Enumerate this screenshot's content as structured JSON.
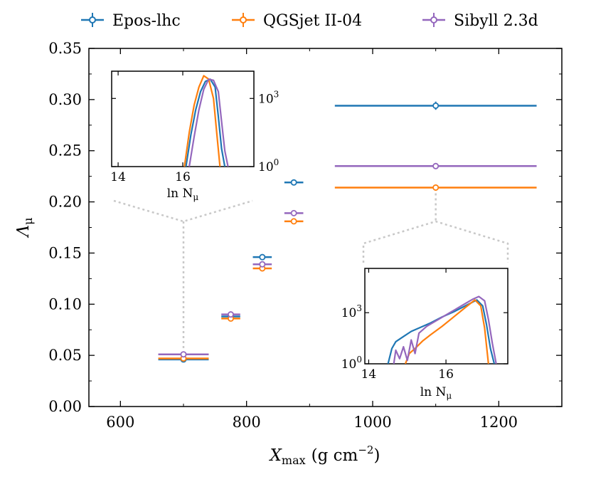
{
  "chart_data": {
    "type": "errorbar",
    "xlabel": "X_max (g cm^-2)",
    "xlabel_main": "X",
    "xlabel_sub": "max",
    "xlabel_units": "(g cm",
    "xlabel_units_exp": "−2",
    "xlabel_units_close": ")",
    "ylabel": "Λ_μ",
    "ylabel_main": "Λ",
    "ylabel_sub": "μ",
    "xlim": [
      550,
      1300
    ],
    "ylim": [
      0,
      0.35
    ],
    "xticks": [
      600,
      800,
      1000,
      1200
    ],
    "xtick_labels": [
      "600",
      "800",
      "1000",
      "1200"
    ],
    "yticks": [
      0,
      0.05,
      0.1,
      0.15,
      0.2,
      0.25,
      0.3,
      0.35
    ],
    "ytick_labels": [
      "0.00",
      "0.05",
      "0.10",
      "0.15",
      "0.20",
      "0.25",
      "0.30",
      "0.35"
    ],
    "series": [
      {
        "name": "Epos-lhc",
        "color": "#1f77b4",
        "points": [
          {
            "x": 700,
            "xlo": 660,
            "xhi": 740,
            "y": 0.046,
            "yerr": 0.002
          },
          {
            "x": 775,
            "xlo": 760,
            "xhi": 790,
            "y": 0.088,
            "yerr": 0.002
          },
          {
            "x": 825,
            "xlo": 810,
            "xhi": 840,
            "y": 0.146,
            "yerr": 0.002
          },
          {
            "x": 875,
            "xlo": 860,
            "xhi": 890,
            "y": 0.219,
            "yerr": 0.002
          },
          {
            "x": 1100,
            "xlo": 940,
            "xhi": 1260,
            "y": 0.294,
            "yerr": 0.004
          }
        ]
      },
      {
        "name": "QGSjet II-04",
        "color": "#ff7f0e",
        "points": [
          {
            "x": 700,
            "xlo": 660,
            "xhi": 740,
            "y": 0.047,
            "yerr": 0.002
          },
          {
            "x": 775,
            "xlo": 760,
            "xhi": 790,
            "y": 0.086,
            "yerr": 0.002
          },
          {
            "x": 825,
            "xlo": 810,
            "xhi": 840,
            "y": 0.135,
            "yerr": 0.002
          },
          {
            "x": 875,
            "xlo": 860,
            "xhi": 890,
            "y": 0.181,
            "yerr": 0.002
          },
          {
            "x": 1100,
            "xlo": 940,
            "xhi": 1260,
            "y": 0.214,
            "yerr": 0.003
          }
        ]
      },
      {
        "name": "Sibyll 2.3d",
        "color": "#9467bd",
        "points": [
          {
            "x": 700,
            "xlo": 660,
            "xhi": 740,
            "y": 0.051,
            "yerr": 0.002
          },
          {
            "x": 775,
            "xlo": 760,
            "xhi": 790,
            "y": 0.09,
            "yerr": 0.002
          },
          {
            "x": 825,
            "xlo": 810,
            "xhi": 840,
            "y": 0.139,
            "yerr": 0.002
          },
          {
            "x": 875,
            "xlo": 860,
            "xhi": 890,
            "y": 0.189,
            "yerr": 0.002
          },
          {
            "x": 1100,
            "xlo": 940,
            "xhi": 1260,
            "y": 0.235,
            "yerr": 0.003
          }
        ]
      }
    ],
    "legend": {
      "location": "top-center",
      "entries": [
        {
          "label": "Epos-lhc",
          "color": "#1f77b4"
        },
        {
          "label": "QGSjet II-04",
          "color": "#ff7f0e"
        },
        {
          "label": "Sibyll 2.3d",
          "color": "#9467bd"
        }
      ]
    },
    "insets": [
      {
        "name": "left",
        "description_bin_x": 700,
        "xlabel": "ln N_μ",
        "xlabel_main": "ln N",
        "xlabel_sub": "μ",
        "xlim": [
          13.8,
          18.2
        ],
        "xticks": [
          14,
          16
        ],
        "xtick_labels": [
          "14",
          "16"
        ],
        "yscale": "log",
        "ylim_log10": [
          0,
          4.2
        ],
        "yticks_log10": [
          0,
          3
        ],
        "ytick_labels": [
          {
            "base": "10",
            "exp": "0"
          },
          {
            "base": "10",
            "exp": "3"
          }
        ],
        "ytick_side": "right",
        "curves": [
          {
            "series": "Epos-lhc",
            "color": "#1f77b4",
            "x": [
              16.1,
              16.25,
              16.4,
              16.55,
              16.7,
              16.85,
              17.0,
              17.1,
              17.2,
              17.3
            ],
            "log10_y": [
              0.0,
              1.4,
              2.5,
              3.3,
              3.75,
              3.85,
              3.5,
              2.2,
              0.8,
              0.0
            ]
          },
          {
            "series": "QGSjet II-04",
            "color": "#ff7f0e",
            "x": [
              16.05,
              16.2,
              16.35,
              16.5,
              16.65,
              16.8,
              16.95,
              17.05,
              17.15
            ],
            "log10_y": [
              0.0,
              1.5,
              2.7,
              3.5,
              4.0,
              3.85,
              3.0,
              1.5,
              0.0
            ]
          },
          {
            "series": "Sibyll 2.3d",
            "color": "#9467bd",
            "x": [
              16.2,
              16.35,
              16.5,
              16.65,
              16.8,
              16.95,
              17.1,
              17.2,
              17.3,
              17.4
            ],
            "log10_y": [
              0.0,
              1.3,
              2.5,
              3.4,
              3.85,
              3.8,
              3.3,
              2.0,
              0.7,
              0.0
            ]
          }
        ]
      },
      {
        "name": "right",
        "description_bin_x": 1100,
        "xlabel": "ln N_μ",
        "xlabel_main": "ln N",
        "xlabel_sub": "μ",
        "xlim": [
          13.9,
          17.6
        ],
        "xticks": [
          14,
          16
        ],
        "xtick_labels": [
          "14",
          "16"
        ],
        "yscale": "log",
        "ylim_log10": [
          0,
          5.6
        ],
        "yticks_log10": [
          0,
          3
        ],
        "ytick_labels": [
          {
            "base": "10",
            "exp": "0"
          },
          {
            "base": "10",
            "exp": "3"
          }
        ],
        "ytick_side": "left",
        "curves": [
          {
            "series": "Epos-lhc",
            "color": "#1f77b4",
            "x": [
              14.5,
              14.6,
              14.7,
              14.9,
              15.1,
              15.3,
              15.6,
              15.9,
              16.2,
              16.5,
              16.8,
              16.95,
              17.05,
              17.15,
              17.25
            ],
            "log10_y": [
              0.0,
              0.9,
              1.3,
              1.6,
              1.9,
              2.1,
              2.4,
              2.75,
              3.05,
              3.4,
              3.75,
              3.4,
              2.3,
              0.9,
              0.0
            ]
          },
          {
            "series": "QGSjet II-04",
            "color": "#ff7f0e",
            "x": [
              14.95,
              15.05,
              15.2,
              15.4,
              15.6,
              15.9,
              16.2,
              16.5,
              16.75,
              16.9,
              17.0,
              17.1
            ],
            "log10_y": [
              0.0,
              0.6,
              0.9,
              1.35,
              1.7,
              2.2,
              2.75,
              3.3,
              3.75,
              3.4,
              2.1,
              0.0
            ]
          },
          {
            "series": "Sibyll 2.3d",
            "color": "#9467bd",
            "x": [
              14.65,
              14.7,
              14.8,
              14.9,
              15.0,
              15.1,
              15.2,
              15.3,
              15.5,
              15.8,
              16.1,
              16.4,
              16.7,
              16.85,
              17.0,
              17.1,
              17.2,
              17.3
            ],
            "log10_y": [
              0.0,
              0.8,
              0.3,
              1.0,
              0.2,
              1.4,
              0.6,
              1.8,
              2.2,
              2.6,
              3.0,
              3.4,
              3.8,
              3.95,
              3.7,
              2.6,
              1.2,
              0.0
            ]
          }
        ]
      }
    ]
  }
}
